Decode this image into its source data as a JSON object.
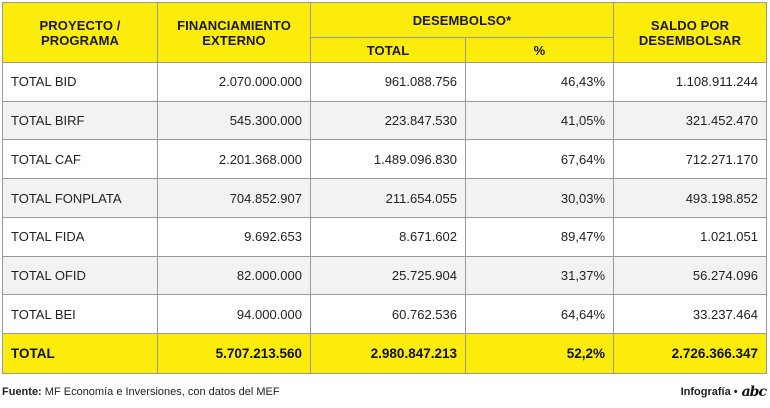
{
  "table": {
    "headers": {
      "proyecto": "PROYECTO /\nPROGRAMA",
      "financiamiento": "FINANCIAMIENTO\nEXTERNO",
      "desembolso": "DESEMBOLSO*",
      "desembolso_total": "TOTAL",
      "desembolso_pct": "%",
      "saldo": "SALDO POR\nDESEMBOLSAR"
    },
    "rows": [
      {
        "name": "TOTAL BID",
        "financiamiento": "2.070.000.000",
        "total": "961.088.756",
        "pct": "46,43%",
        "saldo": "1.108.911.244"
      },
      {
        "name": "TOTAL BIRF",
        "financiamiento": "545.300.000",
        "total": "223.847.530",
        "pct": "41,05%",
        "saldo": "321.452.470"
      },
      {
        "name": "TOTAL CAF",
        "financiamiento": "2.201.368.000",
        "total": "1.489.096.830",
        "pct": "67,64%",
        "saldo": "712.271.170"
      },
      {
        "name": "TOTAL FONPLATA",
        "financiamiento": "704.852.907",
        "total": "211.654.055",
        "pct": "30,03%",
        "saldo": "493.198.852"
      },
      {
        "name": "TOTAL FIDA",
        "financiamiento": "9.692.653",
        "total": "8.671.602",
        "pct": "89,47%",
        "saldo": "1.021.051"
      },
      {
        "name": "TOTAL OFID",
        "financiamiento": "82.000.000",
        "total": "25.725.904",
        "pct": "31,37%",
        "saldo": "56.274.096"
      },
      {
        "name": "TOTAL BEI",
        "financiamiento": "94.000.000",
        "total": "60.762.536",
        "pct": "64,64%",
        "saldo": "33.237.464"
      }
    ],
    "total_row": {
      "name": "TOTAL",
      "financiamiento": "5.707.213.560",
      "total": "2.980.847.213",
      "pct": "52,2%",
      "saldo": "2.726.366.347"
    }
  },
  "footer": {
    "source_label": "Fuente:",
    "source_text": "MF Economía e Inversiones, con datos del MEF",
    "credit": "Infografía •",
    "logo": "abc"
  },
  "colors": {
    "accent": "#fcec0c",
    "zebra": "#f2f2f2",
    "border": "#9a9a9a"
  }
}
